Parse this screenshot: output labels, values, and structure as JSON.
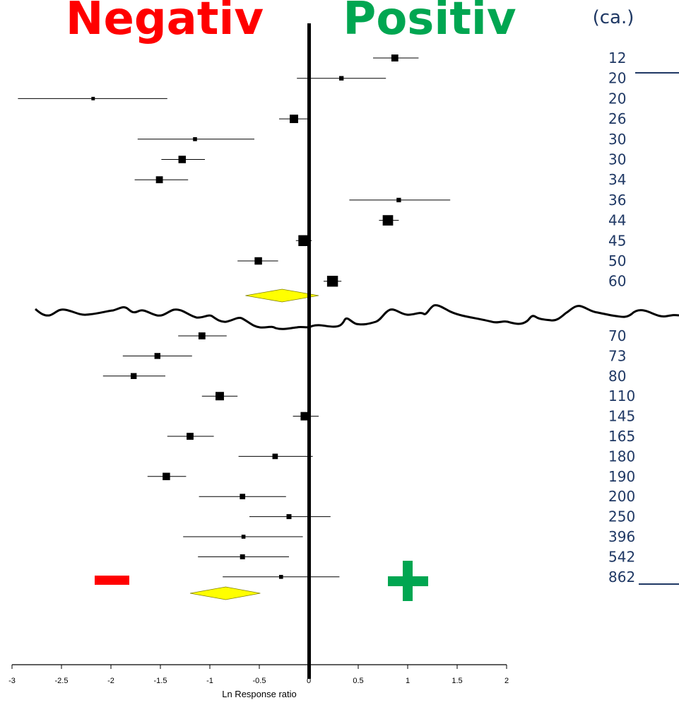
{
  "chart_data": {
    "type": "scatter",
    "subtype": "forest-plot",
    "title_negative": "Negativ",
    "title_positive": "Positiv",
    "column_header": "(ca.)",
    "xlabel": "Ln Response ratio",
    "xlim": [
      -3,
      2
    ],
    "xticks": [
      "-3",
      "-2.5",
      "-2",
      "-1.5",
      "-1",
      "-0.5",
      "0",
      "0.5",
      "1",
      "1.5",
      "2"
    ],
    "grid": false,
    "colors": {
      "negative": "#ff0000",
      "positive": "#00a651",
      "labels": "#1f3864",
      "summary": "#ffff00"
    },
    "group1": {
      "rows": [
        {
          "label": "12",
          "est": 0.87,
          "lo": 0.65,
          "hi": 1.11,
          "size": 1.4
        },
        {
          "label": "20",
          "est": 0.33,
          "lo": -0.12,
          "hi": 0.78,
          "size": 0.9
        },
        {
          "label": "20",
          "est": -2.18,
          "lo": -2.94,
          "hi": -1.43,
          "size": 0.7
        },
        {
          "label": "26",
          "est": -0.15,
          "lo": -0.3,
          "hi": 0.0,
          "size": 1.7
        },
        {
          "label": "30",
          "est": -1.15,
          "lo": -1.73,
          "hi": -0.55,
          "size": 0.8
        },
        {
          "label": "30",
          "est": -1.28,
          "lo": -1.49,
          "hi": -1.05,
          "size": 1.5
        },
        {
          "label": "34",
          "est": -1.51,
          "lo": -1.76,
          "hi": -1.22,
          "size": 1.4
        },
        {
          "label": "36",
          "est": 0.91,
          "lo": 0.41,
          "hi": 1.43,
          "size": 0.9
        },
        {
          "label": "44",
          "est": 0.8,
          "lo": 0.71,
          "hi": 0.91,
          "size": 2.1
        },
        {
          "label": "45",
          "est": -0.05,
          "lo": -0.13,
          "hi": 0.03,
          "size": 2.2
        },
        {
          "label": "50",
          "est": -0.51,
          "lo": -0.72,
          "hi": -0.31,
          "size": 1.5
        },
        {
          "label": "60",
          "est": 0.24,
          "lo": 0.15,
          "hi": 0.33,
          "size": 2.2
        }
      ],
      "summary": {
        "est": -0.27,
        "lo": -0.64,
        "hi": 0.1
      }
    },
    "group2": {
      "rows": [
        {
          "label": "70",
          "est": -1.08,
          "lo": -1.32,
          "hi": -0.83,
          "size": 1.4
        },
        {
          "label": "73",
          "est": -1.53,
          "lo": -1.88,
          "hi": -1.18,
          "size": 1.2
        },
        {
          "label": "80",
          "est": -1.77,
          "lo": -2.08,
          "hi": -1.45,
          "size": 1.2
        },
        {
          "label": "110",
          "est": -0.9,
          "lo": -1.08,
          "hi": -0.72,
          "size": 1.7
        },
        {
          "label": "145",
          "est": -0.04,
          "lo": -0.16,
          "hi": 0.1,
          "size": 1.7
        },
        {
          "label": "165",
          "est": -1.2,
          "lo": -1.43,
          "hi": -0.96,
          "size": 1.4
        },
        {
          "label": "180",
          "est": -0.34,
          "lo": -0.71,
          "hi": 0.04,
          "size": 1.1
        },
        {
          "label": "190",
          "est": -1.44,
          "lo": -1.63,
          "hi": -1.24,
          "size": 1.5
        },
        {
          "label": "200",
          "est": -0.67,
          "lo": -1.11,
          "hi": -0.23,
          "size": 1.1
        },
        {
          "label": "250",
          "est": -0.2,
          "lo": -0.6,
          "hi": 0.22,
          "size": 1.0
        },
        {
          "label": "396",
          "est": -0.66,
          "lo": -1.27,
          "hi": -0.06,
          "size": 0.8
        },
        {
          "label": "542",
          "est": -0.67,
          "lo": -1.12,
          "hi": -0.2,
          "size": 1.0
        },
        {
          "label": "862",
          "est": -0.28,
          "lo": -0.87,
          "hi": 0.31,
          "size": 0.8
        }
      ],
      "summary": {
        "est": -0.84,
        "lo": -1.2,
        "hi": -0.49
      }
    },
    "minus_symbol": "−",
    "plus_symbol": "+"
  }
}
